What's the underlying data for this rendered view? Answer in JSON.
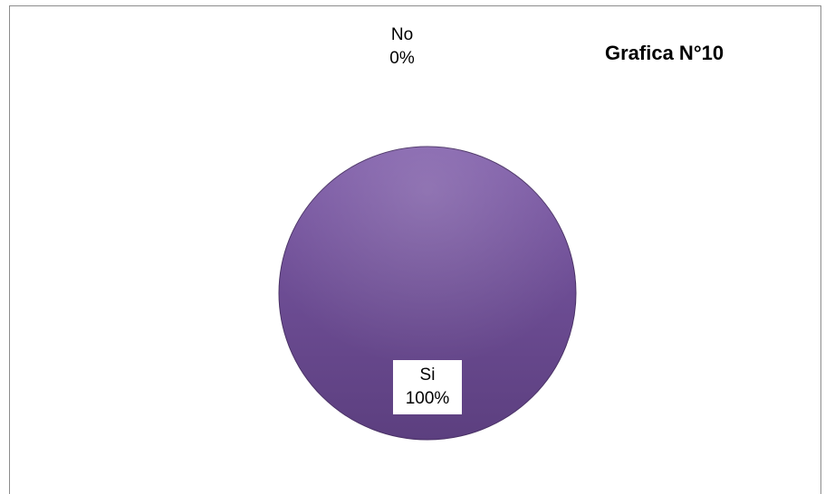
{
  "chart_data": {
    "type": "pie",
    "title": "Grafica N°10",
    "categories": [
      "Si",
      "No"
    ],
    "values": [
      100,
      0
    ],
    "data_labels": [
      {
        "category": "Si",
        "percent": "100%"
      },
      {
        "category": "No",
        "percent": "0%"
      }
    ],
    "colors": {
      "Si": "#6f4e96",
      "No": "#c0504d"
    },
    "legend": "none"
  }
}
